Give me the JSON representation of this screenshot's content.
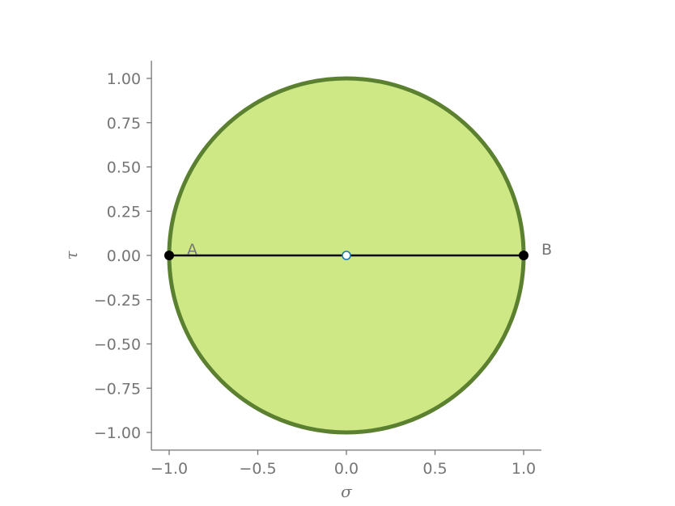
{
  "chart_data": {
    "type": "scatter",
    "title": "",
    "xlabel": "σ",
    "ylabel": "τ",
    "xlim": [
      -1.1,
      1.1
    ],
    "ylim": [
      -1.1,
      1.1
    ],
    "grid": false,
    "legend": "none",
    "x_ticks": [
      -1.0,
      -0.5,
      0.0,
      0.5,
      1.0
    ],
    "x_tick_labels": [
      "−1.0",
      "−0.5",
      "0.0",
      "0.5",
      "1.0"
    ],
    "y_ticks": [
      1.0,
      0.75,
      0.5,
      0.25,
      0.0,
      -0.25,
      -0.5,
      -0.75,
      -1.0
    ],
    "y_tick_labels": [
      "1.00",
      "0.75",
      "0.50",
      "0.25",
      "0.00",
      "−0.25",
      "−0.50",
      "−0.75",
      "−1.00"
    ],
    "circle": {
      "center": [
        0.0,
        0.0
      ],
      "radius": 1.0,
      "fill_color": "#cde885",
      "edge_color": "#5a8030"
    },
    "diameter_line": {
      "from": [
        -1.0,
        0.0
      ],
      "to": [
        1.0,
        0.0
      ],
      "color": "#000000"
    },
    "points": [
      {
        "label": "A",
        "x": -1.0,
        "y": 0.0,
        "color": "#000000"
      },
      {
        "label": "B",
        "x": 1.0,
        "y": 0.0,
        "color": "#000000"
      }
    ],
    "center_point": {
      "x": 0.0,
      "y": 0.0,
      "face_color": "#ffffff",
      "edge_color": "#1f77b4"
    }
  }
}
